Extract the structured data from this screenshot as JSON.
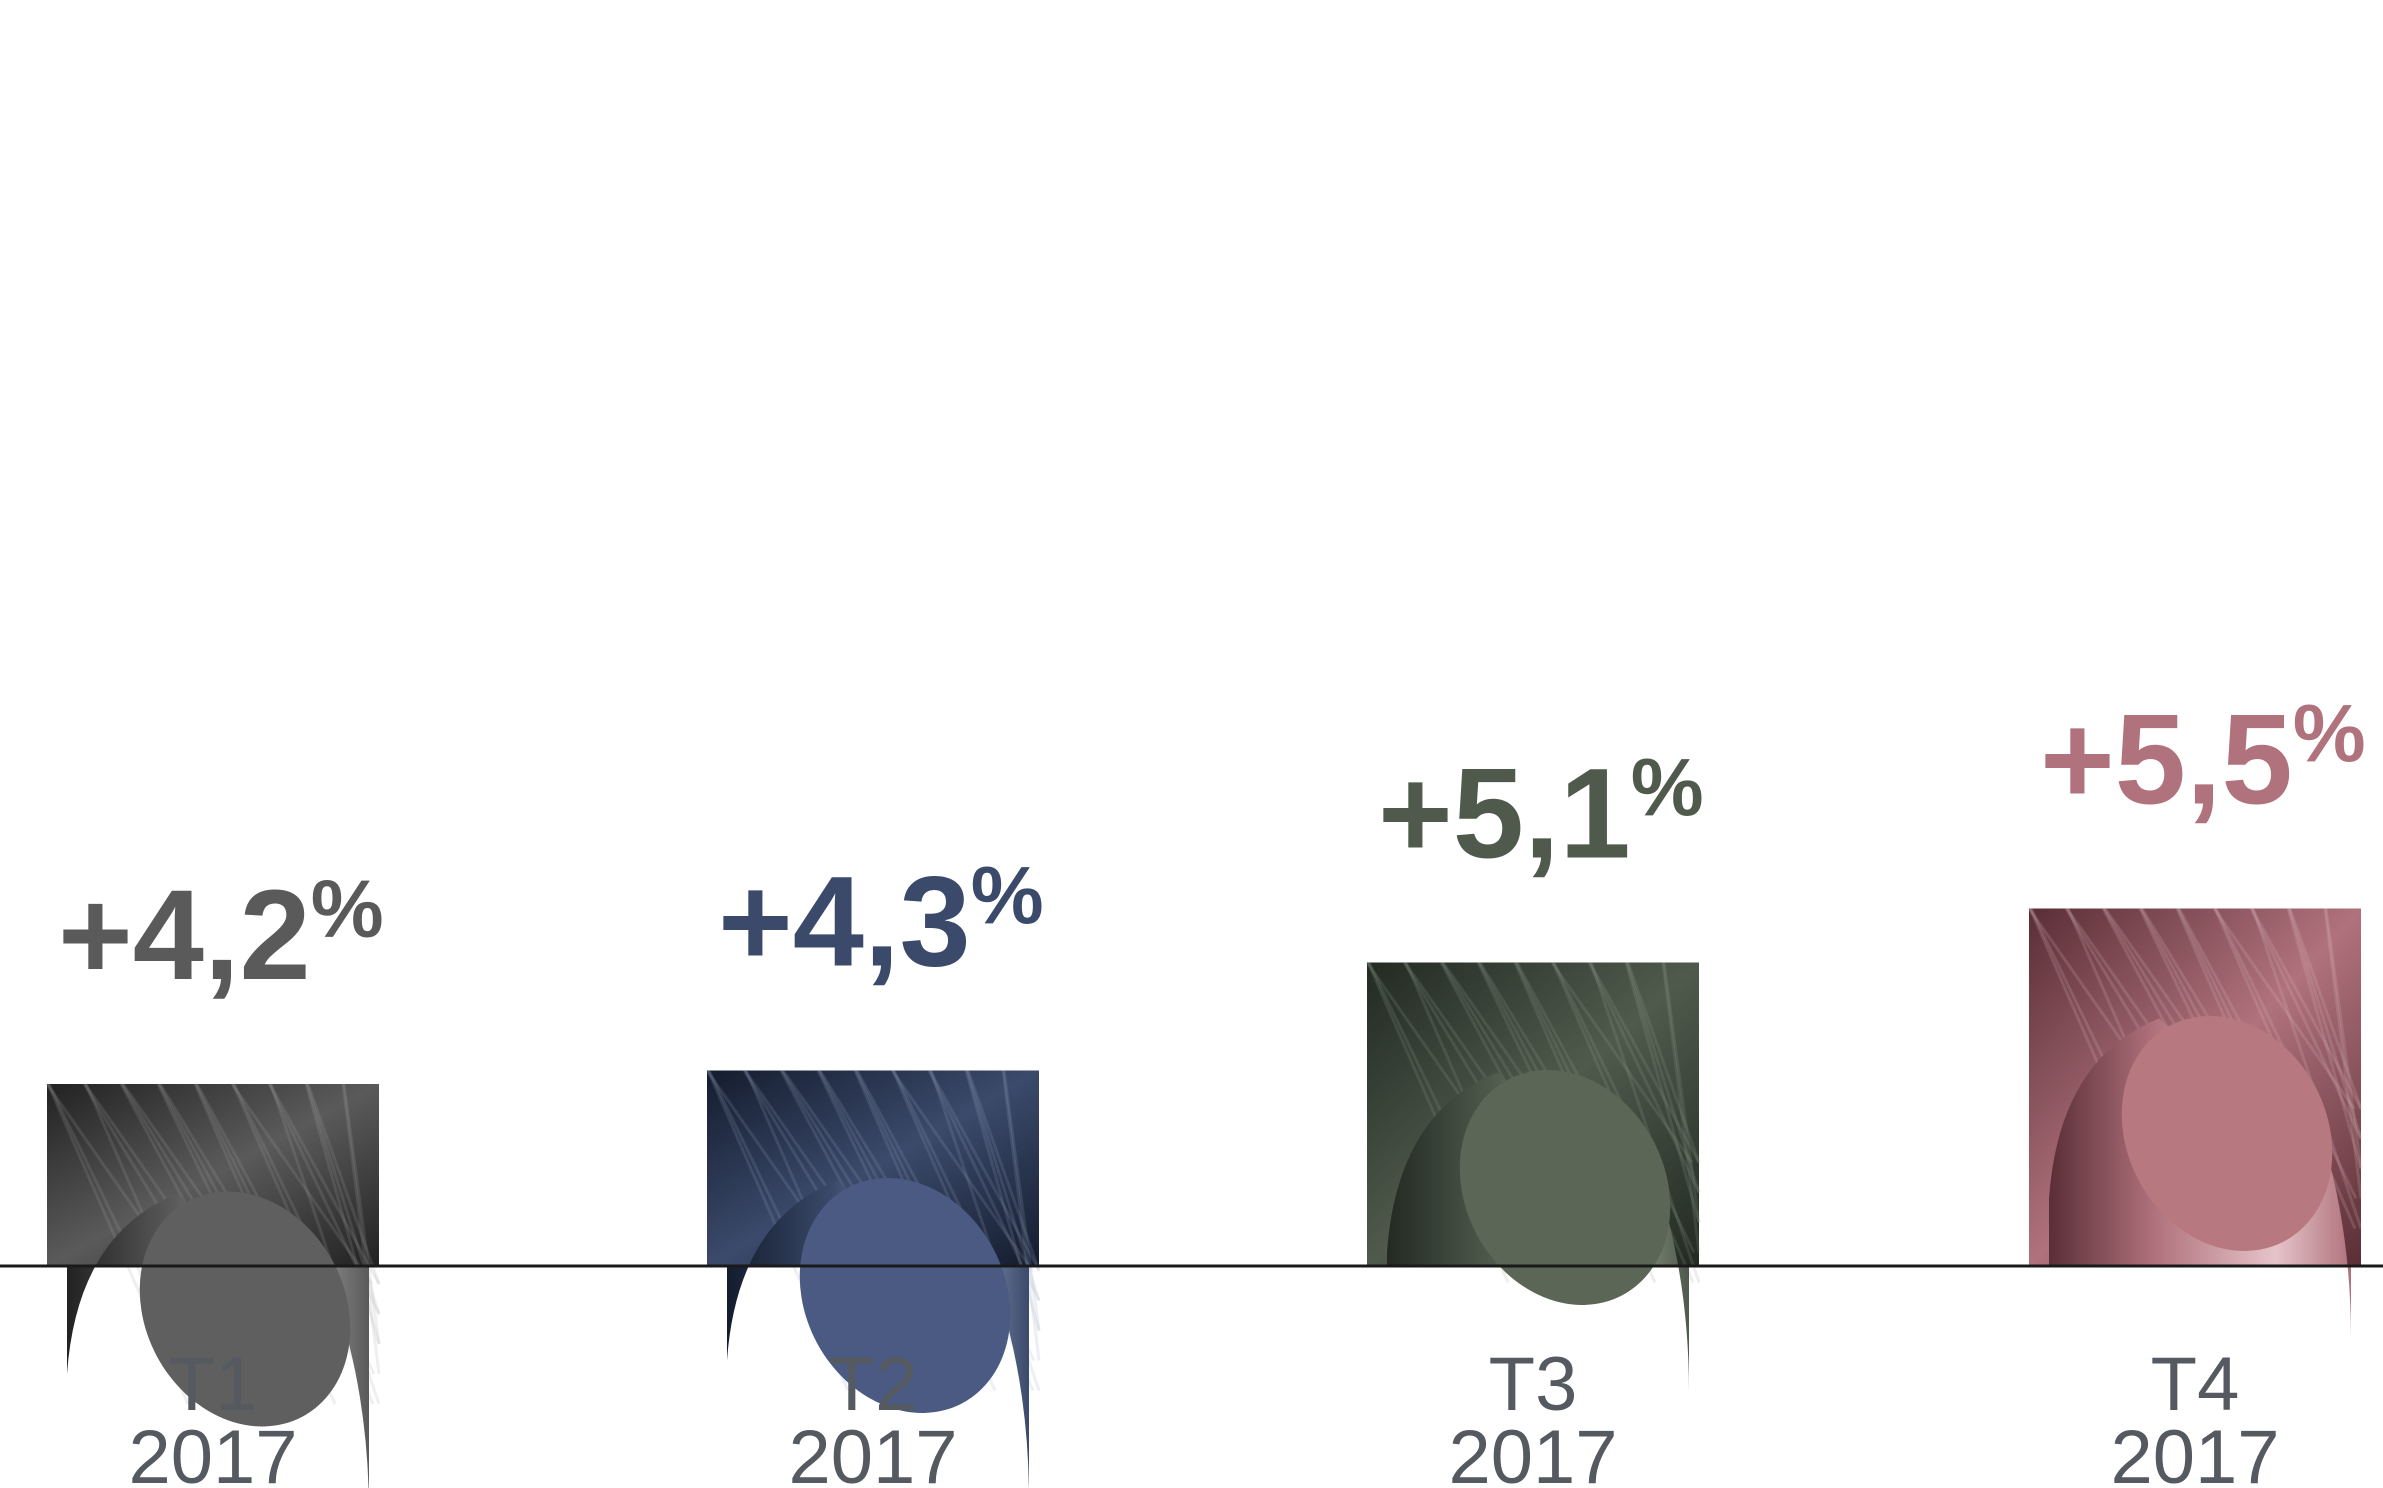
{
  "chart_data": {
    "type": "bar",
    "categories": [
      {
        "line1": "T1",
        "line2": "2017"
      },
      {
        "line1": "T2",
        "line2": "2017"
      },
      {
        "line1": "T3",
        "line2": "2017"
      },
      {
        "line1": "T4",
        "line2": "2017"
      }
    ],
    "values": [
      4.2,
      4.3,
      5.1,
      5.5
    ],
    "value_labels": [
      {
        "number": "+4,2",
        "unit": "%"
      },
      {
        "number": "+4,3",
        "unit": "%"
      },
      {
        "number": "+5,1",
        "unit": "%"
      },
      {
        "number": "+5,5",
        "unit": "%"
      }
    ],
    "colors": [
      "#5a5a5a",
      "#3b4a6b",
      "#4f5a4c",
      "#b0727c"
    ],
    "light_colors": [
      "#a6a6a6",
      "#9aa8c4",
      "#98a493",
      "#e6c4c9"
    ],
    "dark_colors": [
      "#222222",
      "#141c2e",
      "#222a22",
      "#5a2e36"
    ],
    "cap_colors": [
      "#5f5f5f",
      "#4a5a82",
      "#5b6656",
      "#b8787f"
    ],
    "label_colors": [
      "#5a5a5a",
      "#3b4a6b",
      "#4f5a4c",
      "#b0727c"
    ],
    "grid": false,
    "legend": "none"
  }
}
